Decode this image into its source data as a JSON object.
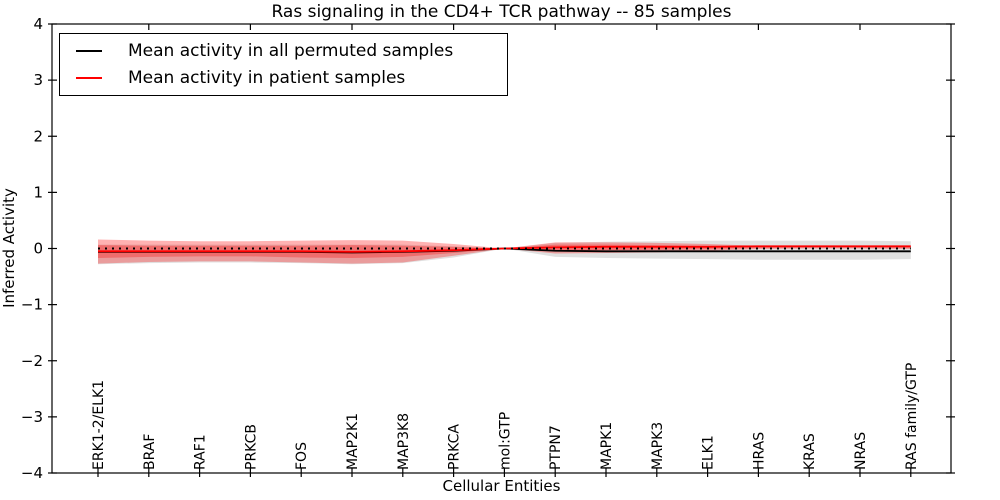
{
  "title": "Ras signaling in the CD4+ TCR pathway -- 85 samples",
  "legend": {
    "items": [
      {
        "label": "Mean activity in all permuted samples",
        "color": "#000000"
      },
      {
        "label": "Mean activity in patient samples",
        "color": "#ff0000"
      }
    ]
  },
  "chart_data": {
    "type": "line",
    "title": "Ras signaling in the CD4+ TCR pathway -- 85 samples",
    "xlabel": "Cellular Entities",
    "ylabel": "Inferred Activity",
    "ylim": [
      -4,
      4
    ],
    "yticks": [
      -4,
      -3,
      -2,
      -1,
      0,
      1,
      2,
      3,
      4
    ],
    "grid": false,
    "legend_position": "upper left",
    "categories": [
      "ERK1-2/ELK1",
      "BRAF",
      "RAF1",
      "PRKCB",
      "FOS",
      "MAP2K1",
      "MAP3K8",
      "PRKCA",
      "mol:GTP",
      "PTPN7",
      "MAPK1",
      "MAPK3",
      "ELK1",
      "HRAS",
      "KRAS",
      "NRAS",
      "RAS family/GTP"
    ],
    "series": [
      {
        "name": "Mean activity in all permuted samples",
        "color": "#000000",
        "style": "solid",
        "values": [
          -0.06,
          -0.06,
          -0.06,
          -0.06,
          -0.06,
          -0.07,
          -0.06,
          -0.04,
          0,
          -0.04,
          -0.05,
          -0.05,
          -0.05,
          -0.05,
          -0.05,
          -0.05,
          -0.05
        ]
      },
      {
        "name": "Mean activity in patient samples",
        "color": "#ff0000",
        "style": "solid",
        "values": [
          -0.05,
          -0.05,
          -0.05,
          -0.05,
          -0.05,
          -0.06,
          -0.05,
          -0.03,
          0,
          0.02,
          0.03,
          0.03,
          0.03,
          0.04,
          0.04,
          0.04,
          0.04
        ]
      },
      {
        "name": "zero reference",
        "color": "#000000",
        "style": "dotted",
        "values": [
          0,
          0,
          0,
          0,
          0,
          0,
          0,
          0,
          0,
          0,
          0,
          0,
          0,
          0,
          0,
          0,
          0
        ]
      }
    ],
    "bands": [
      {
        "name": "permuted-sample-range",
        "fill": "#000000",
        "opacity": 0.12,
        "upper": [
          0.07,
          0.07,
          0.07,
          0.07,
          0.07,
          0.07,
          0.07,
          0.04,
          0,
          0.1,
          0.12,
          0.13,
          0.14,
          0.14,
          0.14,
          0.14,
          0.13
        ],
        "lower": [
          -0.28,
          -0.26,
          -0.25,
          -0.25,
          -0.26,
          -0.28,
          -0.26,
          -0.16,
          0,
          -0.15,
          -0.17,
          -0.18,
          -0.19,
          -0.2,
          -0.2,
          -0.2,
          -0.19
        ]
      },
      {
        "name": "patient-sample-range-outer",
        "fill": "#ff0000",
        "opacity": 0.3,
        "upper": [
          0.16,
          0.14,
          0.13,
          0.13,
          0.14,
          0.15,
          0.14,
          0.08,
          0,
          0.11,
          0.11,
          0.1,
          0.08,
          0.05,
          0.04,
          0.04,
          0.05
        ],
        "lower": [
          -0.27,
          -0.24,
          -0.23,
          -0.23,
          -0.25,
          -0.27,
          -0.25,
          -0.13,
          0,
          -0.09,
          -0.08,
          -0.07,
          -0.04,
          -0.01,
          0.0,
          0.0,
          -0.01
        ]
      },
      {
        "name": "patient-sample-range-inner",
        "fill": "#ff0000",
        "opacity": 0.3,
        "upper": [
          0.06,
          0.05,
          0.05,
          0.05,
          0.05,
          0.06,
          0.05,
          0.03,
          0,
          0.07,
          0.07,
          0.06,
          0.05,
          0.03,
          0.02,
          0.02,
          0.03
        ],
        "lower": [
          -0.17,
          -0.15,
          -0.14,
          -0.14,
          -0.16,
          -0.17,
          -0.15,
          -0.08,
          0,
          -0.04,
          -0.03,
          -0.02,
          -0.01,
          0.01,
          0.01,
          0.01,
          0.01
        ]
      }
    ]
  }
}
